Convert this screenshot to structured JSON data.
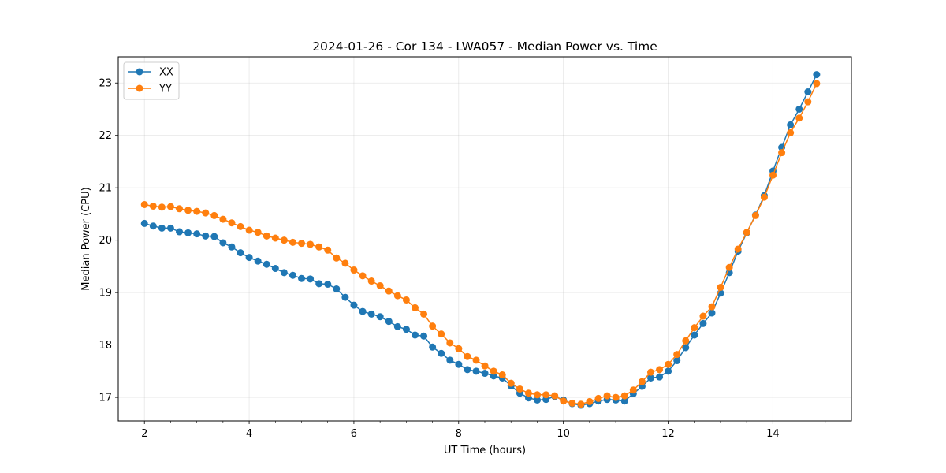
{
  "chart_data": {
    "type": "line",
    "title": "2024-01-26 - Cor 134 - LWA057 - Median Power vs. Time",
    "xlabel": "UT Time (hours)",
    "ylabel": "Median Power (CPU)",
    "xlim": [
      1.5,
      15.5
    ],
    "ylim": [
      16.55,
      23.5
    ],
    "xticks": [
      2,
      4,
      6,
      8,
      10,
      12,
      14
    ],
    "xticks_minor": [
      2.5,
      3,
      3.5,
      4.5,
      5,
      5.5,
      6.5,
      7,
      7.5,
      8.5,
      9,
      9.5,
      10.5,
      11,
      11.5,
      12.5,
      13,
      13.5,
      14.5,
      15
    ],
    "yticks": [
      17,
      18,
      19,
      20,
      21,
      22,
      23
    ],
    "grid": true,
    "legend_position": "top-left",
    "x_start": 2.0,
    "x_step": 0.1667,
    "series": [
      {
        "name": "XX",
        "color": "#1f77b4",
        "values": [
          20.32,
          20.27,
          20.23,
          20.23,
          20.16,
          20.14,
          20.12,
          20.08,
          20.07,
          19.95,
          19.87,
          19.76,
          19.67,
          19.6,
          19.54,
          19.46,
          19.38,
          19.33,
          19.27,
          19.26,
          19.17,
          19.16,
          19.07,
          18.91,
          18.76,
          18.64,
          18.59,
          18.54,
          18.45,
          18.35,
          18.3,
          18.19,
          18.17,
          17.96,
          17.84,
          17.71,
          17.63,
          17.53,
          17.5,
          17.46,
          17.41,
          17.37,
          17.22,
          17.08,
          16.99,
          16.95,
          16.96,
          17.02,
          16.95,
          16.88,
          16.85,
          16.88,
          16.93,
          16.96,
          16.95,
          16.93,
          17.07,
          17.21,
          17.37,
          17.39,
          17.5,
          17.7,
          17.95,
          18.19,
          18.41,
          18.61,
          18.99,
          19.38,
          19.79,
          20.14,
          20.48,
          20.85,
          21.32,
          21.77,
          22.2,
          22.5,
          22.83,
          23.16
        ]
      },
      {
        "name": "YY",
        "color": "#ff7f0e",
        "values": [
          20.68,
          20.65,
          20.63,
          20.64,
          20.6,
          20.57,
          20.55,
          20.52,
          20.47,
          20.4,
          20.33,
          20.26,
          20.19,
          20.15,
          20.08,
          20.04,
          20.0,
          19.96,
          19.94,
          19.92,
          19.87,
          19.81,
          19.66,
          19.56,
          19.43,
          19.32,
          19.22,
          19.13,
          19.03,
          18.94,
          18.86,
          18.71,
          18.59,
          18.36,
          18.21,
          18.04,
          17.93,
          17.78,
          17.71,
          17.6,
          17.5,
          17.43,
          17.27,
          17.16,
          17.08,
          17.05,
          17.05,
          17.03,
          16.93,
          16.89,
          16.87,
          16.92,
          16.98,
          17.03,
          17.0,
          17.03,
          17.14,
          17.3,
          17.48,
          17.53,
          17.63,
          17.82,
          18.08,
          18.33,
          18.55,
          18.73,
          19.1,
          19.48,
          19.83,
          20.15,
          20.47,
          20.82,
          21.24,
          21.67,
          22.05,
          22.33,
          22.64,
          22.99
        ]
      }
    ]
  }
}
